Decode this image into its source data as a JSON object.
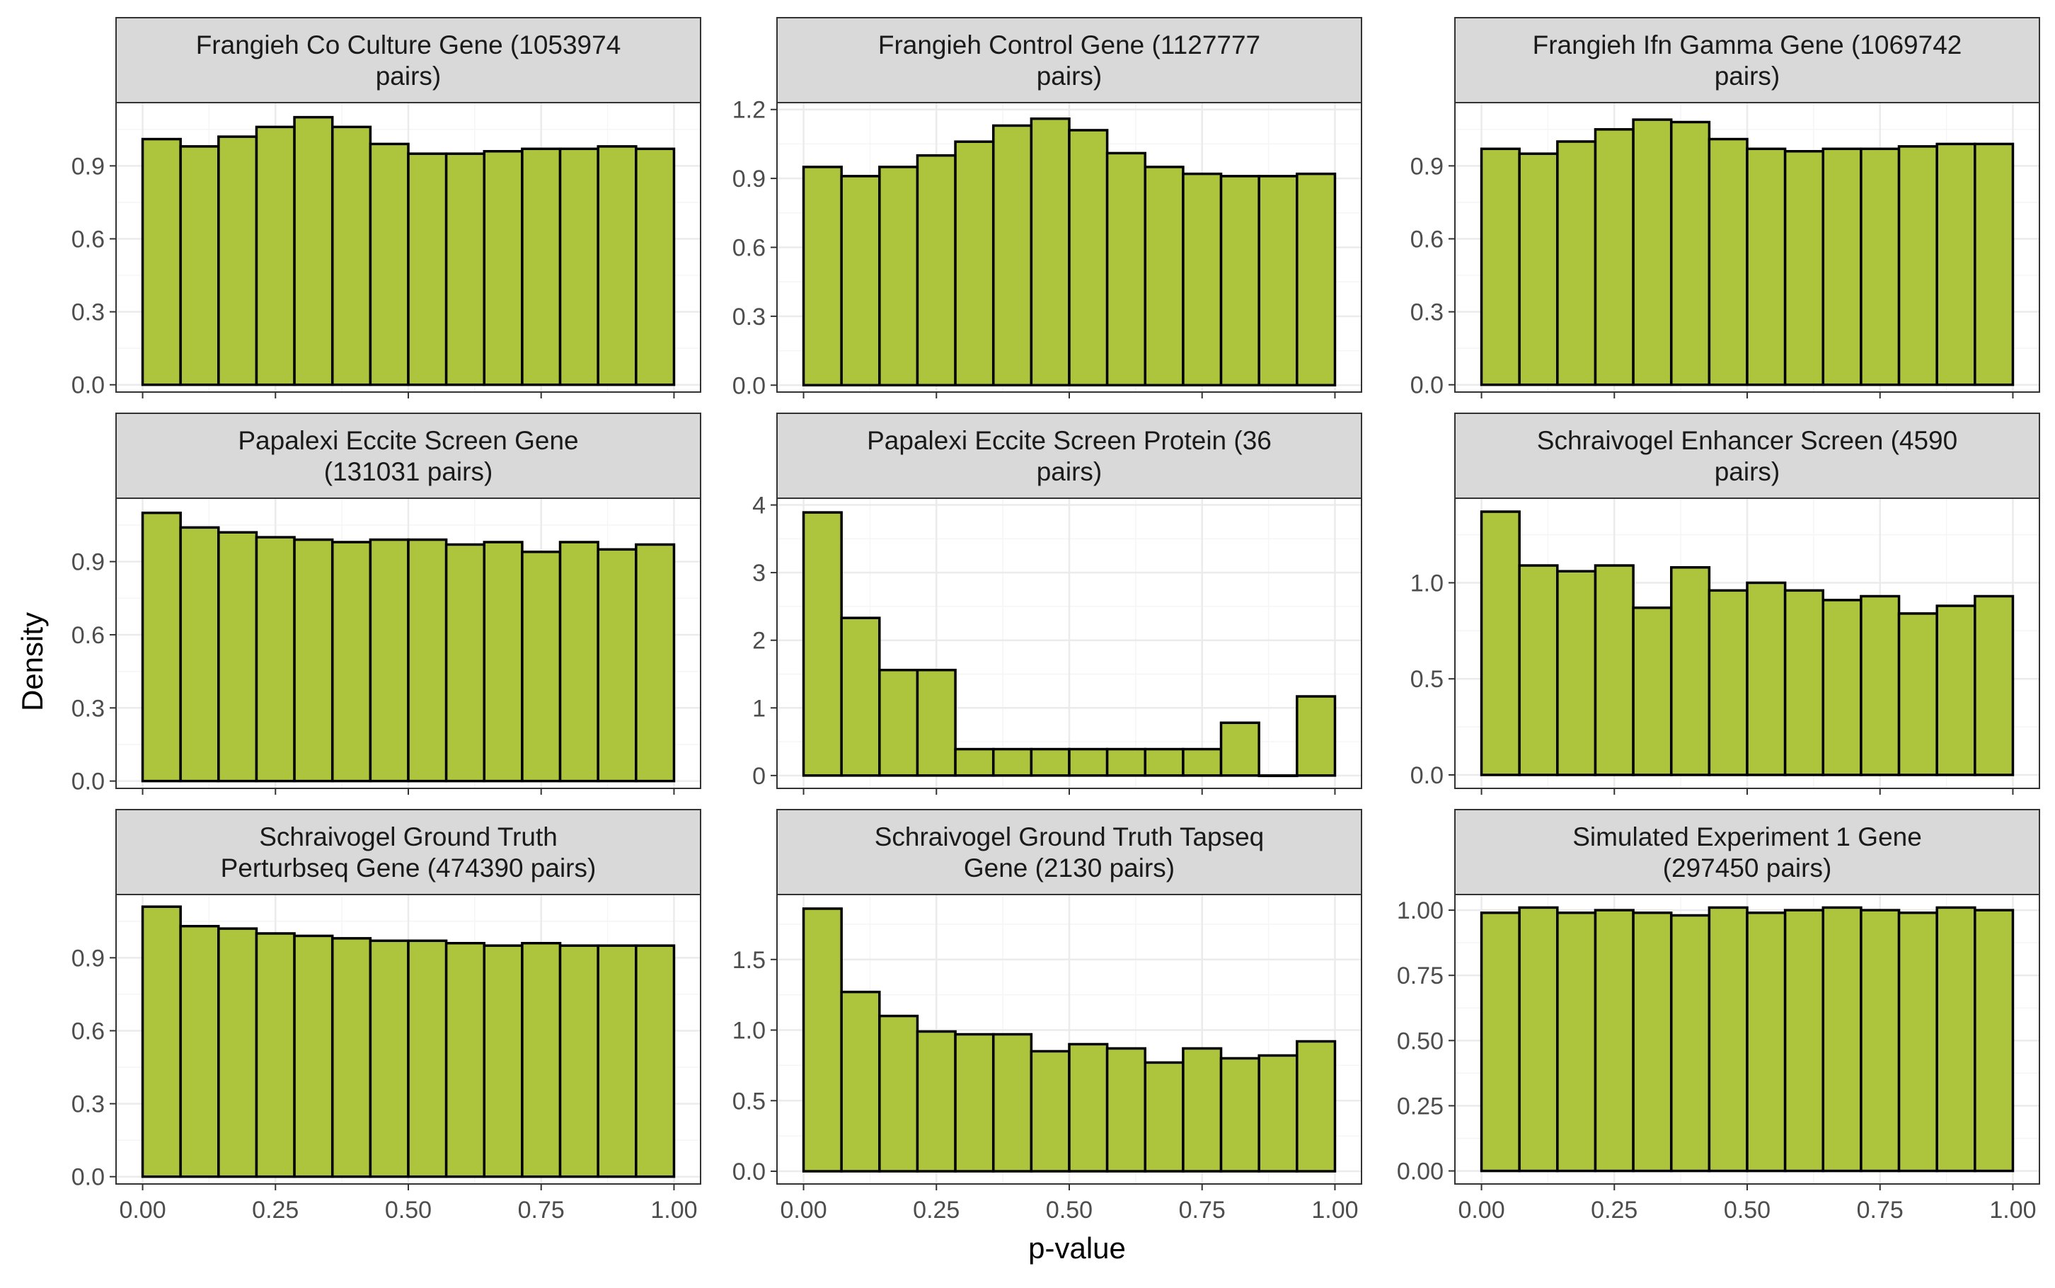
{
  "figure": {
    "xlabel": "p-value",
    "ylabel": "Density"
  },
  "colors": {
    "bar_fill": "#adc43d",
    "bar_stroke": "#000000",
    "strip_fill": "#d9d9d9",
    "grid_major": "#ebebeb",
    "grid_minor": "#f5f5f5",
    "panel_border": "#333333",
    "tick_text": "#4d4d4d"
  },
  "chart_data": [
    {
      "type": "bar",
      "title": "Frangieh Co Culture Gene (1053974 pairs)",
      "title_lines": [
        "Frangieh Co Culture Gene (1053974",
        "pairs)"
      ],
      "bin_width": 0.0714286,
      "x": [
        0.0357,
        0.1071,
        0.1786,
        0.25,
        0.3214,
        0.3929,
        0.4643,
        0.5357,
        0.6071,
        0.6786,
        0.75,
        0.8214,
        0.8929,
        0.9643
      ],
      "values": [
        1.01,
        0.98,
        1.02,
        1.06,
        1.1,
        1.06,
        0.99,
        0.95,
        0.95,
        0.96,
        0.97,
        0.97,
        0.98,
        0.97
      ],
      "xlim": [
        -0.05,
        1.05
      ],
      "ylim": [
        -0.03,
        1.16
      ],
      "xticks": [
        0,
        0.25,
        0.5,
        0.75,
        1
      ],
      "xtick_labels": [
        "0.00",
        "0.25",
        "0.50",
        "0.75",
        "1.00"
      ],
      "yticks": [
        0,
        0.3,
        0.6,
        0.9
      ],
      "ytick_labels": [
        "0.0",
        "0.3",
        "0.6",
        "0.9"
      ],
      "show_x_axis": false,
      "grid": true
    },
    {
      "type": "bar",
      "title": "Frangieh Control Gene (1127777 pairs)",
      "title_lines": [
        "Frangieh Control Gene (1127777",
        "pairs)"
      ],
      "bin_width": 0.0714286,
      "x": [
        0.0357,
        0.1071,
        0.1786,
        0.25,
        0.3214,
        0.3929,
        0.4643,
        0.5357,
        0.6071,
        0.6786,
        0.75,
        0.8214,
        0.8929,
        0.9643
      ],
      "values": [
        0.95,
        0.91,
        0.95,
        1.0,
        1.06,
        1.13,
        1.16,
        1.11,
        1.01,
        0.95,
        0.92,
        0.91,
        0.91,
        0.92
      ],
      "xlim": [
        -0.05,
        1.05
      ],
      "ylim": [
        -0.03,
        1.23
      ],
      "xticks": [
        0,
        0.25,
        0.5,
        0.75,
        1
      ],
      "xtick_labels": [
        "0.00",
        "0.25",
        "0.50",
        "0.75",
        "1.00"
      ],
      "yticks": [
        0,
        0.3,
        0.6,
        0.9,
        1.2
      ],
      "ytick_labels": [
        "0.0",
        "0.3",
        "0.6",
        "0.9",
        "1.2"
      ],
      "show_x_axis": false,
      "grid": true
    },
    {
      "type": "bar",
      "title": "Frangieh Ifn Gamma Gene (1069742 pairs)",
      "title_lines": [
        "Frangieh Ifn Gamma Gene (1069742",
        "pairs)"
      ],
      "bin_width": 0.0714286,
      "x": [
        0.0357,
        0.1071,
        0.1786,
        0.25,
        0.3214,
        0.3929,
        0.4643,
        0.5357,
        0.6071,
        0.6786,
        0.75,
        0.8214,
        0.8929,
        0.9643
      ],
      "values": [
        0.97,
        0.95,
        1.0,
        1.05,
        1.09,
        1.08,
        1.01,
        0.97,
        0.96,
        0.97,
        0.97,
        0.98,
        0.99,
        0.99
      ],
      "xlim": [
        -0.05,
        1.05
      ],
      "ylim": [
        -0.03,
        1.16
      ],
      "xticks": [
        0,
        0.25,
        0.5,
        0.75,
        1
      ],
      "xtick_labels": [
        "0.00",
        "0.25",
        "0.50",
        "0.75",
        "1.00"
      ],
      "yticks": [
        0,
        0.3,
        0.6,
        0.9
      ],
      "ytick_labels": [
        "0.0",
        "0.3",
        "0.6",
        "0.9"
      ],
      "show_x_axis": false,
      "grid": true
    },
    {
      "type": "bar",
      "title": "Papalexi Eccite Screen Gene (131031 pairs)",
      "title_lines": [
        "Papalexi Eccite Screen Gene",
        "(131031 pairs)"
      ],
      "bin_width": 0.0714286,
      "x": [
        0.0357,
        0.1071,
        0.1786,
        0.25,
        0.3214,
        0.3929,
        0.4643,
        0.5357,
        0.6071,
        0.6786,
        0.75,
        0.8214,
        0.8929,
        0.9643
      ],
      "values": [
        1.1,
        1.04,
        1.02,
        1.0,
        0.99,
        0.98,
        0.99,
        0.99,
        0.97,
        0.98,
        0.94,
        0.98,
        0.95,
        0.97
      ],
      "xlim": [
        -0.05,
        1.05
      ],
      "ylim": [
        -0.03,
        1.16
      ],
      "xticks": [
        0,
        0.25,
        0.5,
        0.75,
        1
      ],
      "xtick_labels": [
        "0.00",
        "0.25",
        "0.50",
        "0.75",
        "1.00"
      ],
      "yticks": [
        0,
        0.3,
        0.6,
        0.9
      ],
      "ytick_labels": [
        "0.0",
        "0.3",
        "0.6",
        "0.9"
      ],
      "show_x_axis": false,
      "grid": true
    },
    {
      "type": "bar",
      "title": "Papalexi Eccite Screen Protein (36 pairs)",
      "title_lines": [
        "Papalexi Eccite Screen Protein (36",
        "pairs)"
      ],
      "bin_width": 0.0714286,
      "x": [
        0.0357,
        0.1071,
        0.1786,
        0.25,
        0.3214,
        0.3929,
        0.4643,
        0.5357,
        0.6071,
        0.6786,
        0.75,
        0.8214,
        0.8929,
        0.9643
      ],
      "values": [
        3.89,
        2.33,
        1.56,
        1.56,
        0.39,
        0.39,
        0.39,
        0.39,
        0.39,
        0.39,
        0.39,
        0.78,
        0.0,
        1.17
      ],
      "xlim": [
        -0.05,
        1.05
      ],
      "ylim": [
        -0.19,
        4.1
      ],
      "xticks": [
        0,
        0.25,
        0.5,
        0.75,
        1
      ],
      "xtick_labels": [
        "0.00",
        "0.25",
        "0.50",
        "0.75",
        "1.00"
      ],
      "yticks": [
        0,
        1,
        2,
        3,
        4
      ],
      "ytick_labels": [
        "0",
        "1",
        "2",
        "3",
        "4"
      ],
      "show_x_axis": false,
      "grid": true
    },
    {
      "type": "bar",
      "title": "Schraivogel Enhancer Screen (4590 pairs)",
      "title_lines": [
        "Schraivogel Enhancer Screen (4590",
        "pairs)"
      ],
      "bin_width": 0.0714286,
      "x": [
        0.0357,
        0.1071,
        0.1786,
        0.25,
        0.3214,
        0.3929,
        0.4643,
        0.5357,
        0.6071,
        0.6786,
        0.75,
        0.8214,
        0.8929,
        0.9643
      ],
      "values": [
        1.37,
        1.09,
        1.06,
        1.09,
        0.87,
        1.08,
        0.96,
        1.0,
        0.96,
        0.91,
        0.93,
        0.84,
        0.88,
        0.93
      ],
      "xlim": [
        -0.05,
        1.05
      ],
      "ylim": [
        -0.07,
        1.44
      ],
      "xticks": [
        0,
        0.25,
        0.5,
        0.75,
        1
      ],
      "xtick_labels": [
        "0.00",
        "0.25",
        "0.50",
        "0.75",
        "1.00"
      ],
      "yticks": [
        0,
        0.5,
        1.0
      ],
      "ytick_labels": [
        "0.0",
        "0.5",
        "1.0"
      ],
      "show_x_axis": false,
      "grid": true
    },
    {
      "type": "bar",
      "title": "Schraivogel Ground Truth Perturbseq Gene (474390 pairs)",
      "title_lines": [
        "Schraivogel Ground Truth",
        "Perturbseq Gene (474390 pairs)"
      ],
      "bin_width": 0.0714286,
      "x": [
        0.0357,
        0.1071,
        0.1786,
        0.25,
        0.3214,
        0.3929,
        0.4643,
        0.5357,
        0.6071,
        0.6786,
        0.75,
        0.8214,
        0.8929,
        0.9643
      ],
      "values": [
        1.11,
        1.03,
        1.02,
        1.0,
        0.99,
        0.98,
        0.97,
        0.97,
        0.96,
        0.95,
        0.96,
        0.95,
        0.95,
        0.95
      ],
      "xlim": [
        -0.05,
        1.05
      ],
      "ylim": [
        -0.03,
        1.16
      ],
      "xticks": [
        0,
        0.25,
        0.5,
        0.75,
        1
      ],
      "xtick_labels": [
        "0.00",
        "0.25",
        "0.50",
        "0.75",
        "1.00"
      ],
      "yticks": [
        0,
        0.3,
        0.6,
        0.9
      ],
      "ytick_labels": [
        "0.0",
        "0.3",
        "0.6",
        "0.9"
      ],
      "show_x_axis": true,
      "grid": true
    },
    {
      "type": "bar",
      "title": "Schraivogel Ground Truth Tapseq Gene (2130 pairs)",
      "title_lines": [
        "Schraivogel Ground Truth Tapseq",
        "Gene (2130 pairs)"
      ],
      "bin_width": 0.0714286,
      "x": [
        0.0357,
        0.1071,
        0.1786,
        0.25,
        0.3214,
        0.3929,
        0.4643,
        0.5357,
        0.6071,
        0.6786,
        0.75,
        0.8214,
        0.8929,
        0.9643
      ],
      "values": [
        1.86,
        1.27,
        1.1,
        0.99,
        0.97,
        0.97,
        0.85,
        0.9,
        0.87,
        0.77,
        0.87,
        0.8,
        0.82,
        0.92
      ],
      "xlim": [
        -0.05,
        1.05
      ],
      "ylim": [
        -0.09,
        1.96
      ],
      "xticks": [
        0,
        0.25,
        0.5,
        0.75,
        1
      ],
      "xtick_labels": [
        "0.00",
        "0.25",
        "0.50",
        "0.75",
        "1.00"
      ],
      "yticks": [
        0,
        0.5,
        1.0,
        1.5
      ],
      "ytick_labels": [
        "0.0",
        "0.5",
        "1.0",
        "1.5"
      ],
      "show_x_axis": true,
      "grid": true
    },
    {
      "type": "bar",
      "title": "Simulated Experiment 1 Gene (297450 pairs)",
      "title_lines": [
        "Simulated Experiment 1 Gene",
        "(297450 pairs)"
      ],
      "bin_width": 0.0714286,
      "x": [
        0.0357,
        0.1071,
        0.1786,
        0.25,
        0.3214,
        0.3929,
        0.4643,
        0.5357,
        0.6071,
        0.6786,
        0.75,
        0.8214,
        0.8929,
        0.9643
      ],
      "values": [
        0.99,
        1.01,
        0.99,
        1.0,
        0.99,
        0.98,
        1.01,
        0.99,
        1.0,
        1.01,
        1.0,
        0.99,
        1.01,
        1.0
      ],
      "xlim": [
        -0.05,
        1.05
      ],
      "ylim": [
        -0.05,
        1.06
      ],
      "xticks": [
        0,
        0.25,
        0.5,
        0.75,
        1
      ],
      "xtick_labels": [
        "0.00",
        "0.25",
        "0.50",
        "0.75",
        "1.00"
      ],
      "yticks": [
        0,
        0.25,
        0.5,
        0.75,
        1.0
      ],
      "ytick_labels": [
        "0.00",
        "0.25",
        "0.50",
        "0.75",
        "1.00"
      ],
      "show_x_axis": true,
      "grid": true
    }
  ]
}
